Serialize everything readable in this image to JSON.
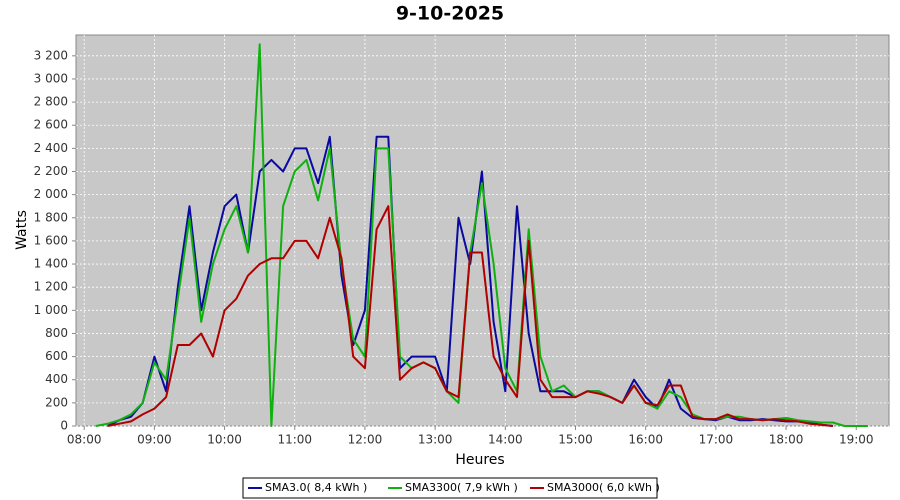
{
  "chart_data": {
    "type": "line",
    "title": "9-10-2025",
    "x_label": "Heures",
    "y_label": "Watts",
    "x": [
      "08:10",
      "08:20",
      "08:30",
      "08:40",
      "08:50",
      "09:00",
      "09:10",
      "09:20",
      "09:30",
      "09:40",
      "09:50",
      "10:00",
      "10:10",
      "10:20",
      "10:30",
      "10:40",
      "10:50",
      "11:00",
      "11:10",
      "11:20",
      "11:30",
      "11:40",
      "11:50",
      "12:00",
      "12:10",
      "12:20",
      "12:30",
      "12:40",
      "12:50",
      "13:00",
      "13:10",
      "13:20",
      "13:30",
      "13:40",
      "13:50",
      "14:00",
      "14:10",
      "14:20",
      "14:30",
      "14:40",
      "14:50",
      "15:00",
      "15:10",
      "15:20",
      "15:30",
      "15:40",
      "15:50",
      "16:00",
      "16:10",
      "16:20",
      "16:30",
      "16:40",
      "16:50",
      "17:00",
      "17:10",
      "17:20",
      "17:30",
      "17:40",
      "17:50",
      "18:00",
      "18:10",
      "18:20",
      "18:30",
      "18:40",
      "18:50",
      "19:00",
      "19:10"
    ],
    "series": [
      {
        "name": "SMA3.0( 8,4 kWh )",
        "color": "#0a0aa0",
        "values": [
          null,
          0,
          50,
          80,
          200,
          600,
          300,
          1200,
          1900,
          1000,
          1500,
          1900,
          2000,
          1500,
          2200,
          2300,
          2200,
          2400,
          2400,
          2100,
          2500,
          1300,
          700,
          1000,
          2500,
          2500,
          500,
          600,
          600,
          600,
          300,
          1800,
          1400,
          2200,
          900,
          300,
          1900,
          800,
          300,
          300,
          300,
          250,
          300,
          300,
          250,
          200,
          400,
          250,
          150,
          400,
          150,
          70,
          60,
          50,
          80,
          50,
          50,
          60,
          50,
          40,
          40,
          30,
          10,
          0,
          null,
          null,
          null
        ]
      },
      {
        "name": "SMA3300( 7,9 kWh )",
        "color": "#10b010",
        "values": [
          0,
          20,
          50,
          100,
          200,
          550,
          400,
          1100,
          1800,
          900,
          1400,
          1700,
          1900,
          1500,
          3300,
          0,
          1900,
          2200,
          2300,
          1950,
          2400,
          1400,
          750,
          600,
          2400,
          2400,
          600,
          500,
          550,
          500,
          300,
          200,
          1500,
          2100,
          1400,
          500,
          300,
          1700,
          600,
          300,
          350,
          250,
          300,
          300,
          250,
          200,
          350,
          200,
          150,
          300,
          250,
          100,
          60,
          60,
          80,
          80,
          60,
          50,
          60,
          70,
          50,
          40,
          30,
          30,
          0,
          0,
          0
        ]
      },
      {
        "name": "SMA3000( 6,0 kWh )",
        "color": "#b00000",
        "values": [
          null,
          0,
          20,
          40,
          100,
          150,
          250,
          700,
          700,
          800,
          600,
          1000,
          1100,
          1300,
          1400,
          1450,
          1450,
          1600,
          1600,
          1450,
          1800,
          1450,
          600,
          500,
          1700,
          1900,
          400,
          500,
          550,
          500,
          300,
          250,
          1500,
          1500,
          600,
          400,
          250,
          1600,
          400,
          250,
          250,
          250,
          300,
          280,
          250,
          200,
          350,
          200,
          180,
          350,
          350,
          80,
          60,
          60,
          100,
          60,
          60,
          50,
          60,
          50,
          40,
          20,
          10,
          0,
          null,
          null,
          null
        ]
      }
    ],
    "xlim": [
      "07:53",
      "19:28"
    ],
    "xticks": [
      "08:00",
      "09:00",
      "10:00",
      "11:00",
      "12:00",
      "13:00",
      "14:00",
      "15:00",
      "16:00",
      "17:00",
      "18:00",
      "19:00"
    ],
    "ylim": [
      0,
      3380
    ],
    "yticks": [
      0,
      200,
      400,
      600,
      800,
      {
        "value": 1000,
        "label": "1 000"
      },
      {
        "value": 1200,
        "label": "1 200"
      },
      {
        "value": 1400,
        "label": "1 400"
      },
      {
        "value": 1600,
        "label": "1 600"
      },
      {
        "value": 1800,
        "label": "1 800"
      },
      {
        "value": 2000,
        "label": "2 000"
      },
      {
        "value": 2200,
        "label": "2 200"
      },
      {
        "value": 2400,
        "label": "2 400"
      },
      {
        "value": 2600,
        "label": "2 600"
      },
      {
        "value": 2800,
        "label": "2 800"
      },
      {
        "value": 3000,
        "label": "3 000"
      },
      {
        "value": 3200,
        "label": "3 200"
      }
    ],
    "grid": true
  }
}
